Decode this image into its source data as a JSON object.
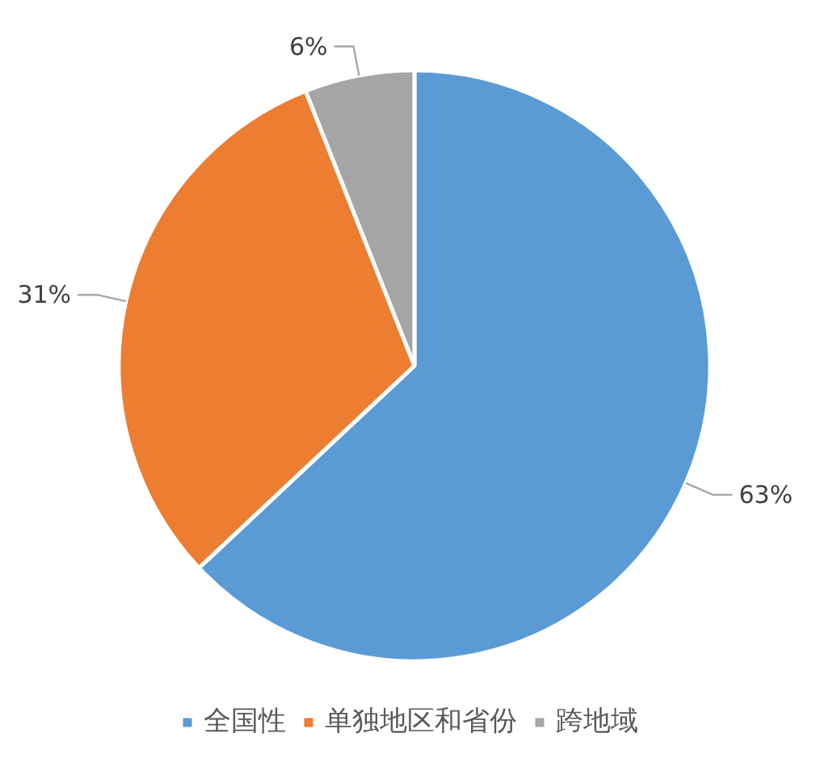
{
  "chart_data": {
    "type": "pie",
    "categories": [
      "全国性",
      "单独地区和省份",
      "跨地域"
    ],
    "values": [
      63,
      31,
      6
    ],
    "colors": [
      "#5b9bd5",
      "#ed7d31",
      "#a5a5a5"
    ],
    "value_labels": [
      "63%",
      "31%",
      "6%"
    ],
    "legend": "bottom"
  }
}
